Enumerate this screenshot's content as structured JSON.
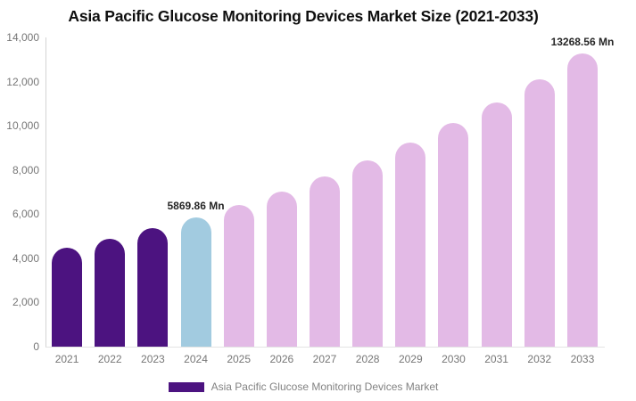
{
  "title": "Asia Pacific Glucose Monitoring Devices Market Size (2021-2033)",
  "legend": {
    "label": "Asia Pacific Glucose Monitoring Devices Market",
    "swatch_color": "#4c1380"
  },
  "colors": {
    "historical_bar": "#4c1380",
    "base_year_bar": "#a2cbe0",
    "forecast_bar": "#e3bae6",
    "axis_line": "#d4d4d4",
    "axis_text": "#767676",
    "annotation_text": "#262626"
  },
  "chart_data": {
    "type": "bar",
    "title": "Asia Pacific Glucose Monitoring Devices Market Size (2021-2033)",
    "xlabel": "",
    "ylabel": "",
    "categories": [
      "2021",
      "2022",
      "2023",
      "2024",
      "2025",
      "2026",
      "2027",
      "2028",
      "2029",
      "2030",
      "2031",
      "2032",
      "2033"
    ],
    "values": [
      4470,
      4900,
      5360,
      5869.86,
      6430,
      7040,
      7700,
      8440,
      9240,
      10110,
      11070,
      12120,
      13268.56
    ],
    "point_colors": [
      "#4c1380",
      "#4c1380",
      "#4c1380",
      "#a2cbe0",
      "#e3bae6",
      "#e3bae6",
      "#e3bae6",
      "#e3bae6",
      "#e3bae6",
      "#e3bae6",
      "#e3bae6",
      "#e3bae6",
      "#e3bae6"
    ],
    "unit": "Mn",
    "ylim": [
      0,
      14000
    ],
    "ytick_values": [
      0,
      2000,
      4000,
      6000,
      8000,
      10000,
      12000,
      14000
    ],
    "ytick_labels": [
      "0",
      "2,000",
      "4,000",
      "6,000",
      "8,000",
      "10,000",
      "12,000",
      "14,000"
    ],
    "grid": false,
    "legend_position": "bottom",
    "legend_entries": [
      "Asia Pacific Glucose Monitoring Devices Market"
    ],
    "annotations": [
      {
        "category": "2024",
        "index": 3,
        "text": "5869.86 Mn"
      },
      {
        "category": "2033",
        "index": 12,
        "text": "13268.56 Mn"
      }
    ]
  }
}
